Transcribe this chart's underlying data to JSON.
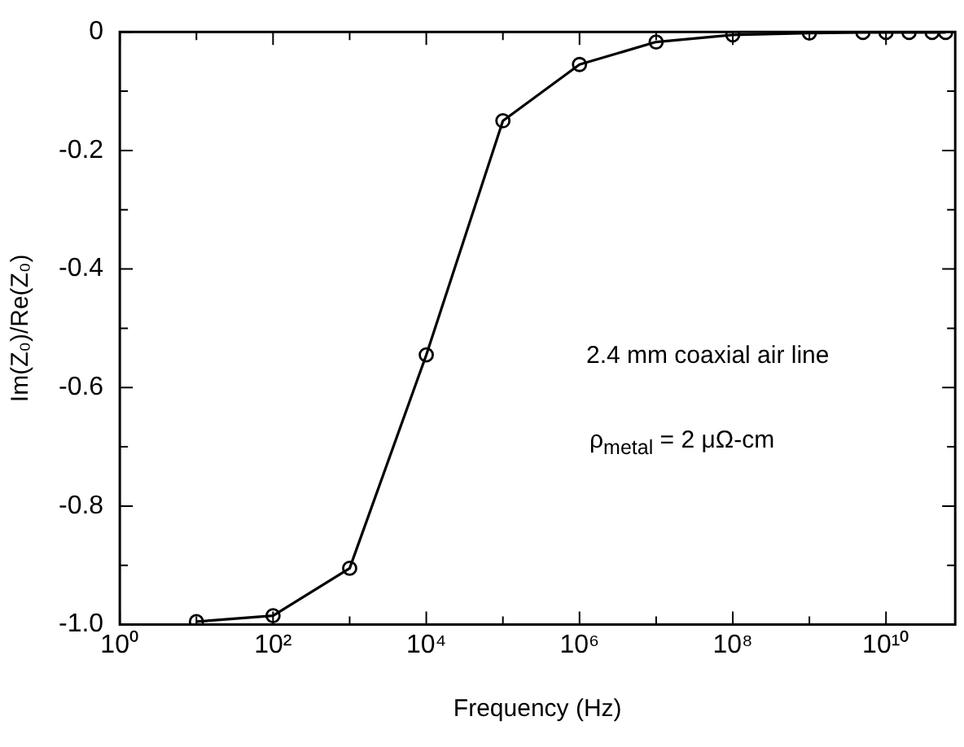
{
  "chart_data": {
    "type": "line",
    "xlabel": "Frequency (Hz)",
    "ylabel": "Im(Z₀)/Re(Z₀)",
    "x": [
      10,
      100,
      1000,
      10000,
      100000,
      1000000,
      10000000,
      100000000,
      1000000000,
      5000000000,
      10000000000,
      20000000000,
      40000000000,
      60000000000
    ],
    "values": [
      -0.995,
      -0.985,
      -0.905,
      -0.545,
      -0.15,
      -0.055,
      -0.017,
      -0.005,
      -0.002,
      -0.001,
      -0.001,
      -0.001,
      -0.001,
      -0.001
    ],
    "color": "#000000",
    "marker": "circle",
    "line_style": "solid",
    "log": "x",
    "grid": false,
    "legend": false,
    "xlim": [
      1,
      80000000000
    ],
    "xticks": [
      {
        "value": 1,
        "label": "10⁰"
      },
      {
        "value": 10,
        "label": null
      },
      {
        "value": 100,
        "label": "10²"
      },
      {
        "value": 1000,
        "label": null
      },
      {
        "value": 10000,
        "label": "10⁴"
      },
      {
        "value": 100000,
        "label": null
      },
      {
        "value": 1000000,
        "label": "10⁶"
      },
      {
        "value": 10000000,
        "label": null
      },
      {
        "value": 100000000,
        "label": "10⁸"
      },
      {
        "value": 1000000000,
        "label": null
      },
      {
        "value": 10000000000,
        "label": "10¹⁰"
      }
    ],
    "ylim": [
      -1,
      0
    ],
    "yticks": [
      {
        "value": -1,
        "label": "-1.0"
      },
      {
        "value": -0.9,
        "label": null
      },
      {
        "value": -0.8,
        "label": "-0.8"
      },
      {
        "value": -0.7,
        "label": null
      },
      {
        "value": -0.6,
        "label": "-0.6"
      },
      {
        "value": -0.5,
        "label": null
      },
      {
        "value": -0.4,
        "label": "-0.4"
      },
      {
        "value": -0.3,
        "label": null
      },
      {
        "value": -0.2,
        "label": "-0.2"
      },
      {
        "value": -0.1,
        "label": null
      },
      0
    ],
    "annotations": [
      "2.4 mm coaxial air line",
      "ρ$_{metal}$ = 2 μΩ-cm"
    ]
  }
}
